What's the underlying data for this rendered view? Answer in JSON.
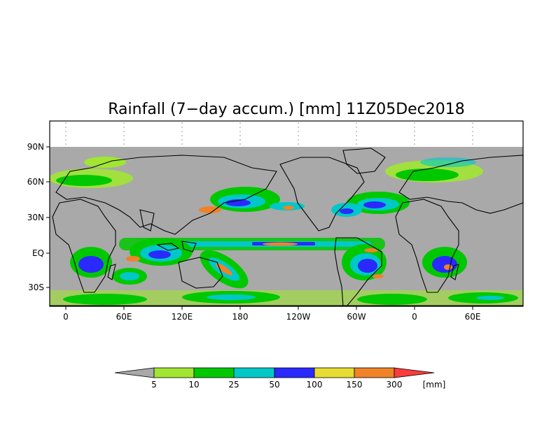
{
  "title": "Rainfall (7−day accum.) [mm] 11Z05Dec2018",
  "lon_labels": [
    "0",
    "60E",
    "120E",
    "180",
    "120W",
    "60W",
    "0",
    "60E"
  ],
  "lat_labels": [
    "90N",
    "60N",
    "30N",
    "EQ",
    "30S"
  ],
  "colorbar": {
    "unit": "[mm]",
    "thresholds": [
      "5",
      "10",
      "25",
      "50",
      "100",
      "150",
      "300"
    ],
    "colors": [
      "#a9a9a9",
      "#a0e632",
      "#00c800",
      "#00c8c8",
      "#2a2aff",
      "#e6dc32",
      "#f08228",
      "#fa3c3c"
    ]
  },
  "colors": {
    "ocean_dry": "#a9a9a9",
    "coastline": "#000000",
    "no_data": "#ffffff"
  }
}
